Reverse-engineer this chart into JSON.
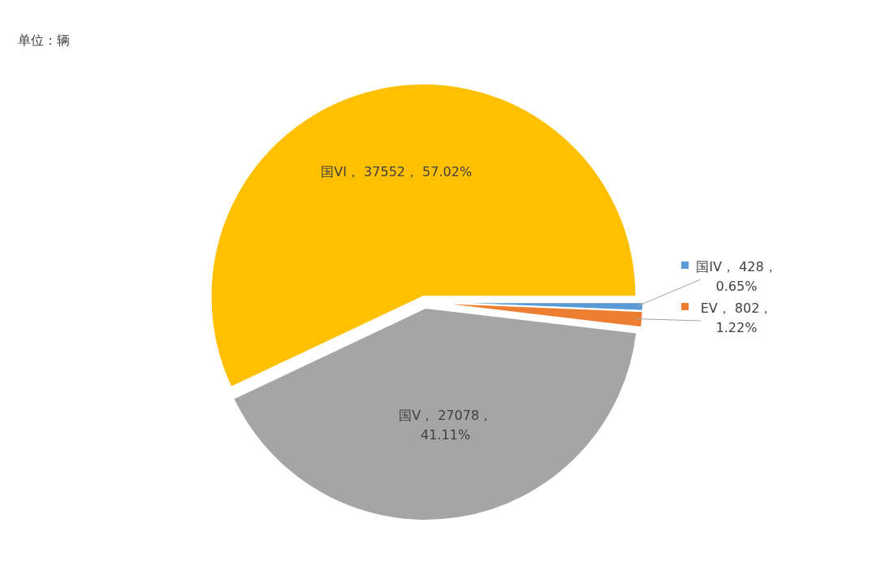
{
  "chart_data": {
    "type": "pie",
    "annotations": [
      "单位：辆"
    ],
    "categories": [
      "国IV",
      "EV",
      "国V",
      "国VI"
    ],
    "values": [
      428,
      802,
      27078,
      37552
    ],
    "colors": [
      "#5b9bd5",
      "#ed7d31",
      "#a5a5a5",
      "#ffc000"
    ],
    "value_labels": [
      "， 428，\n0.65%",
      "， 802，\n1.22%",
      "， 27078，\n41.11%",
      "， 37552， 57.02%"
    ],
    "legend": "right"
  }
}
